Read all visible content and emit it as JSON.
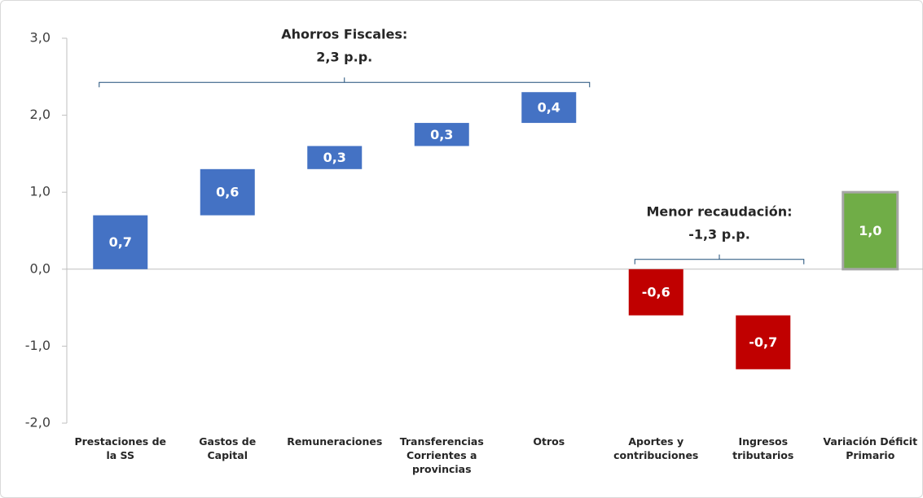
{
  "chart_data": {
    "type": "waterfall",
    "categories": [
      "Prestaciones de la SS",
      "Gastos de Capital",
      "Remuneraciones",
      "Transferencias Corrientes a provincias",
      "Otros",
      "Aportes y contribuciones",
      "Ingresos tributarios",
      "Variación Déficit Primario"
    ],
    "values": [
      0.7,
      0.6,
      0.3,
      0.3,
      0.4,
      -0.6,
      -0.7,
      1.0
    ],
    "value_labels": [
      "0,7",
      "0,6",
      "0,3",
      "0,3",
      "0,4",
      "-0,6",
      "-0,7",
      "1,0"
    ],
    "colors": [
      "#4472c4",
      "#4472c4",
      "#4472c4",
      "#4472c4",
      "#4472c4",
      "#c00000",
      "#c00000",
      "#70ad47"
    ],
    "ylim": [
      -2.0,
      3.0
    ],
    "yticks": [
      {
        "value": -2.0,
        "label": "-2,0"
      },
      {
        "value": -1.0,
        "label": "-1,0"
      },
      {
        "value": 0.0,
        "label": "0,0"
      },
      {
        "value": 1.0,
        "label": "1,0"
      },
      {
        "value": 2.0,
        "label": "2,0"
      },
      {
        "value": 3.0,
        "label": "3,0"
      }
    ],
    "annotations": [
      {
        "text": [
          "Ahorros Fiscales:",
          "2,3 p.p."
        ],
        "from": "Prestaciones de la SS",
        "to": "Otros"
      },
      {
        "text": [
          "Menor recaudación:",
          "-1,3 p.p."
        ],
        "from": "Aportes y contribuciones",
        "to": "Ingresos tributarios"
      }
    ]
  }
}
